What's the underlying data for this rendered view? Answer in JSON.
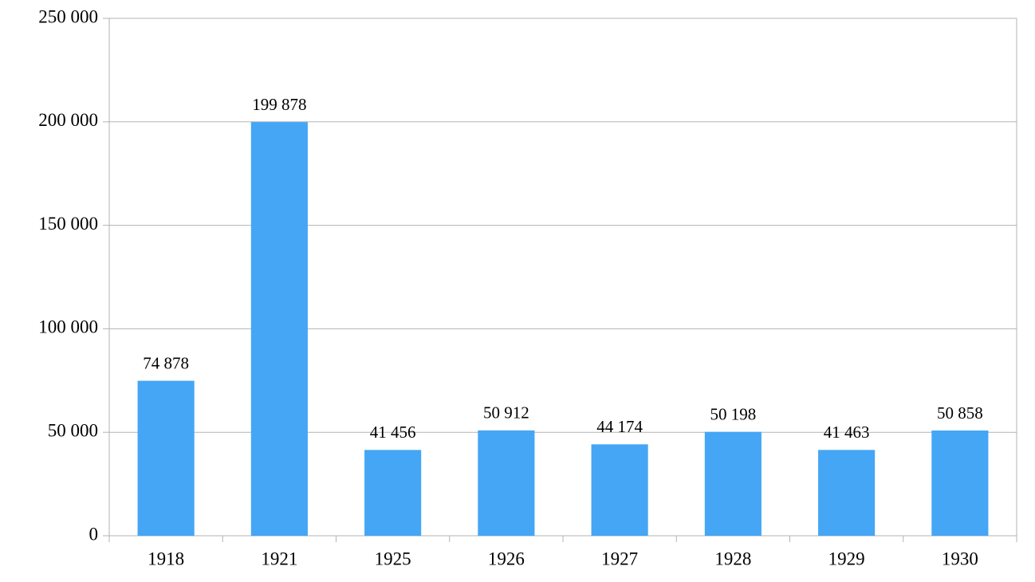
{
  "chart_data": {
    "type": "bar",
    "categories": [
      "1918",
      "1921",
      "1925",
      "1926",
      "1927",
      "1928",
      "1929",
      "1930"
    ],
    "values": [
      74878,
      199878,
      41456,
      50912,
      44174,
      50198,
      41463,
      50858
    ],
    "value_labels": [
      "74 878",
      "199 878",
      "41 456",
      "50 912",
      "44 174",
      "50 198",
      "41 463",
      "50 858"
    ],
    "color": "#44a6f5",
    "ylim": [
      0,
      250000
    ],
    "yticks": [
      0,
      {
        "value": 50000,
        "label": "50 000"
      },
      {
        "value": 100000,
        "label": "100 000"
      },
      {
        "value": 150000,
        "label": "150 000"
      },
      {
        "value": 200000,
        "label": "200 000"
      },
      {
        "value": 250000,
        "label": "250 000"
      }
    ],
    "grid": true
  }
}
